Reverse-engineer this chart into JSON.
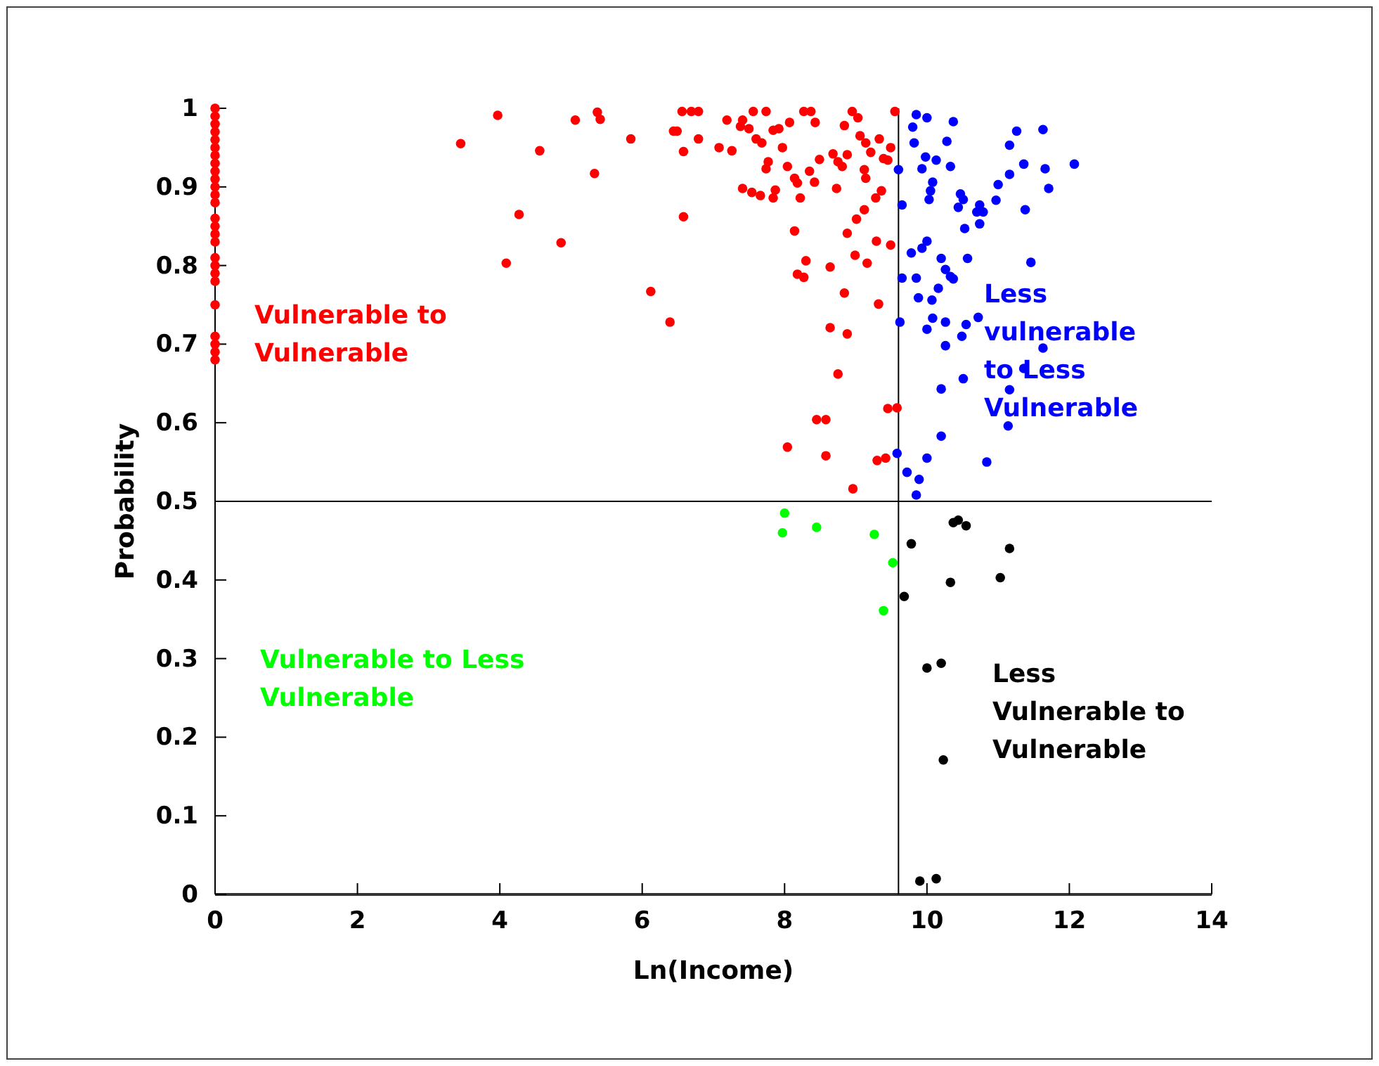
{
  "chart_data": {
    "type": "scatter",
    "xlabel": "Ln(Income)",
    "ylabel": "Probability",
    "xlim": [
      0,
      14
    ],
    "ylim": [
      0,
      1
    ],
    "xticks": [
      0,
      2,
      4,
      6,
      8,
      10,
      12,
      14
    ],
    "yticks": [
      0,
      0.1,
      0.2,
      0.3,
      0.4,
      0.5,
      0.6,
      0.7,
      0.8,
      0.9,
      1
    ],
    "marker": "circle",
    "series": [
      {
        "color": "#ff0000",
        "x": [
          0,
          0,
          0,
          0,
          0,
          0,
          0,
          0,
          0,
          0,
          0,
          0,
          0,
          0,
          0,
          0,
          0,
          0,
          0,
          0,
          0,
          0,
          0,
          0,
          0,
          0,
          3.45,
          3.97,
          4.56,
          4.27,
          4.09,
          5.06,
          4.86,
          5.33,
          5.37,
          5.41,
          5.84,
          6.12,
          6.39,
          6.44,
          6.56,
          6.69,
          6.79,
          6.49,
          6.58,
          6.79,
          6.58,
          7.19,
          7.41,
          7.56,
          7.74,
          7.38,
          7.5,
          7.6,
          7.68,
          7.08,
          7.26,
          7.84,
          7.92,
          8.07,
          7.97,
          7.77,
          7.74,
          8.04,
          8.14,
          8.18,
          7.41,
          7.54,
          7.66,
          7.87,
          7.84,
          8.22,
          8.27,
          8.37,
          8.43,
          8.35,
          8.42,
          8.49,
          8.68,
          8.75,
          8.88,
          8.81,
          8.73,
          8.95,
          9.03,
          8.84,
          9.06,
          9.14,
          9.21,
          9.33,
          9.49,
          9.39,
          9.45,
          9.12,
          9.14,
          9.36,
          9.28,
          9.12,
          9.01,
          8.88,
          8.14,
          8.3,
          8.18,
          8.27,
          8.64,
          8.99,
          9.16,
          9.29,
          9.49,
          9.55,
          8.84,
          9.32,
          8.64,
          8.88,
          8.75,
          8.45,
          8.58,
          9.45,
          9.58,
          8.04,
          8.58,
          9.3,
          9.42,
          8.96
        ],
        "values": [
          0.68,
          0.69,
          0.7,
          0.71,
          0.75,
          0.78,
          0.79,
          0.8,
          0.81,
          0.83,
          0.84,
          0.85,
          0.86,
          0.88,
          0.89,
          0.9,
          0.91,
          0.92,
          0.93,
          0.94,
          0.95,
          0.96,
          0.97,
          0.98,
          0.99,
          1,
          0.955,
          0.991,
          0.946,
          0.865,
          0.803,
          0.985,
          0.829,
          0.917,
          0.995,
          0.986,
          0.961,
          0.767,
          0.728,
          0.971,
          0.996,
          0.996,
          0.996,
          0.971,
          0.945,
          0.961,
          0.862,
          0.985,
          0.985,
          0.996,
          0.996,
          0.977,
          0.974,
          0.961,
          0.956,
          0.95,
          0.946,
          0.972,
          0.974,
          0.982,
          0.95,
          0.932,
          0.923,
          0.926,
          0.911,
          0.905,
          0.898,
          0.893,
          0.889,
          0.896,
          0.886,
          0.886,
          0.996,
          0.996,
          0.982,
          0.92,
          0.906,
          0.935,
          0.942,
          0.932,
          0.941,
          0.926,
          0.898,
          0.996,
          0.988,
          0.978,
          0.965,
          0.956,
          0.944,
          0.961,
          0.95,
          0.936,
          0.934,
          0.922,
          0.911,
          0.895,
          0.886,
          0.871,
          0.859,
          0.841,
          0.844,
          0.806,
          0.789,
          0.785,
          0.798,
          0.813,
          0.803,
          0.831,
          0.826,
          0.996,
          0.765,
          0.751,
          0.721,
          0.713,
          0.662,
          0.604,
          0.604,
          0.618,
          0.619,
          0.569,
          0.558,
          0.552,
          0.555,
          0.516
        ]
      },
      {
        "color": "#00ff00",
        "x": [
          8.0,
          7.97,
          8.45,
          9.26,
          9.52,
          9.39
        ],
        "values": [
          0.485,
          0.46,
          0.467,
          0.458,
          0.422,
          0.361
        ]
      },
      {
        "color": "#0000ff",
        "x": [
          9.85,
          10.0,
          9.8,
          10.37,
          9.82,
          10.28,
          11.26,
          11.63,
          11.16,
          9.98,
          10.13,
          9.93,
          10.33,
          9.6,
          11.36,
          11.66,
          12.07,
          11.16,
          11.0,
          10.08,
          10.05,
          10.03,
          11.71,
          10.47,
          10.51,
          10.44,
          10.74,
          10.79,
          10.7,
          10.97,
          11.38,
          9.65,
          10.74,
          10.53,
          10.0,
          9.93,
          9.78,
          10.2,
          10.57,
          11.46,
          10.26,
          10.33,
          10.37,
          9.65,
          9.85,
          10.16,
          9.88,
          10.07,
          9.62,
          10.08,
          10.0,
          10.26,
          10.72,
          10.55,
          10.49,
          10.26,
          11.63,
          11.36,
          10.51,
          10.2,
          11.16,
          11.14,
          10.2,
          10.84,
          9.58,
          10.0,
          9.72,
          9.89,
          9.85
        ],
        "values": [
          0.992,
          0.988,
          0.976,
          0.983,
          0.956,
          0.958,
          0.971,
          0.973,
          0.953,
          0.938,
          0.934,
          0.923,
          0.926,
          0.922,
          0.929,
          0.923,
          0.929,
          0.916,
          0.903,
          0.906,
          0.895,
          0.884,
          0.898,
          0.891,
          0.884,
          0.874,
          0.877,
          0.868,
          0.868,
          0.883,
          0.871,
          0.877,
          0.853,
          0.847,
          0.831,
          0.822,
          0.816,
          0.809,
          0.809,
          0.804,
          0.795,
          0.786,
          0.783,
          0.784,
          0.784,
          0.771,
          0.759,
          0.756,
          0.728,
          0.733,
          0.719,
          0.728,
          0.734,
          0.725,
          0.71,
          0.698,
          0.695,
          0.669,
          0.656,
          0.643,
          0.642,
          0.596,
          0.583,
          0.55,
          0.561,
          0.555,
          0.537,
          0.528,
          0.508
        ]
      },
      {
        "color": "#000000",
        "x": [
          10.37,
          10.44,
          10.55,
          9.78,
          11.16,
          10.33,
          11.03,
          9.68,
          10.0,
          10.2,
          10.23,
          9.9,
          10.13
        ],
        "values": [
          0.473,
          0.476,
          0.469,
          0.446,
          0.44,
          0.397,
          0.403,
          0.379,
          0.288,
          0.294,
          0.171,
          0.017,
          0.02
        ]
      }
    ],
    "ref_lines": [
      {
        "axis": "x",
        "value": 9.6
      },
      {
        "axis": "y",
        "value": 0.5
      }
    ],
    "annotations": [
      "Vulnerable to Vulnerable",
      "Vulnerable to Less Vulnerable",
      "Less vulnerable to Less Vulnerable",
      "Less Vulnerable to Vulnerable"
    ]
  }
}
